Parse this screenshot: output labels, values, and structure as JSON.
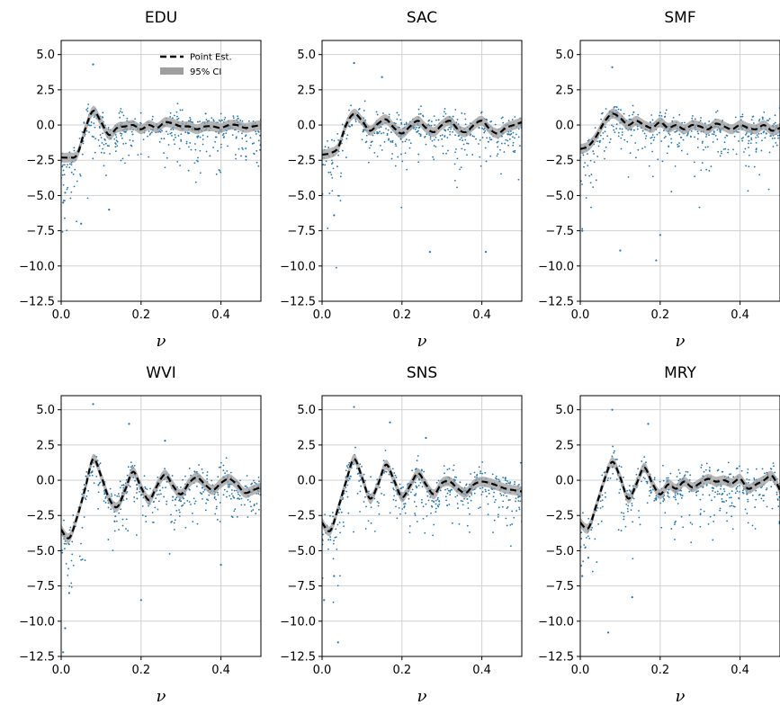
{
  "figure": {
    "legend": {
      "point_label": "Point Est.",
      "ci_label": "95% CI",
      "placement": "top-right of first panel"
    },
    "colors": {
      "point_estimate": "#000000",
      "ci_band": "#9e9e9e",
      "scatter": "#1f77b4",
      "grid": "#d0d0d0"
    }
  },
  "chart_data": [
    {
      "type": "line",
      "title": "EDU",
      "xlabel": "ν",
      "ylabel": "",
      "xlim": [
        0,
        0.5
      ],
      "ylim": [
        -12.5,
        6
      ],
      "xticks": [
        "0.0",
        "0.2",
        "0.4"
      ],
      "yticks": [
        "5.0",
        "2.5",
        "0.0",
        "−2.5",
        "−5.0",
        "−7.5",
        "−10.0",
        "−12.5"
      ],
      "grid": true,
      "legend": "top-right",
      "series": [
        {
          "name": "Point Est.",
          "x": [
            0.0,
            0.02,
            0.04,
            0.06,
            0.08,
            0.1,
            0.12,
            0.14,
            0.16,
            0.18,
            0.2,
            0.22,
            0.24,
            0.26,
            0.28,
            0.3,
            0.32,
            0.34,
            0.36,
            0.38,
            0.4,
            0.42,
            0.44,
            0.46,
            0.48,
            0.5
          ],
          "y": [
            -2.3,
            -2.3,
            -2.1,
            -0.3,
            1.0,
            0.2,
            -0.7,
            -0.2,
            -0.1,
            0.0,
            -0.3,
            0.0,
            -0.2,
            0.2,
            0.1,
            -0.1,
            -0.1,
            -0.3,
            -0.1,
            -0.1,
            -0.2,
            0.0,
            0.0,
            -0.2,
            -0.1,
            0.0
          ]
        },
        {
          "name": "95% CI",
          "half_width": 0.35
        }
      ],
      "scatter_outliers": [
        [
          0.08,
          4.3
        ],
        [
          0.05,
          -7.0
        ],
        [
          0.12,
          -6.0
        ],
        [
          0.005,
          -5.5
        ],
        [
          0.01,
          -4.8
        ]
      ]
    },
    {
      "type": "line",
      "title": "SAC",
      "xlabel": "ν",
      "ylabel": "",
      "xlim": [
        0,
        0.5
      ],
      "ylim": [
        -12.5,
        6
      ],
      "xticks": [
        "0.0",
        "0.2",
        "0.4"
      ],
      "yticks": [
        "5.0",
        "2.5",
        "0.0",
        "−2.5",
        "−5.0",
        "−7.5",
        "−10.0",
        "−12.5"
      ],
      "grid": true,
      "series": [
        {
          "name": "Point Est.",
          "x": [
            0.0,
            0.02,
            0.04,
            0.06,
            0.08,
            0.1,
            0.12,
            0.14,
            0.16,
            0.18,
            0.2,
            0.22,
            0.24,
            0.26,
            0.28,
            0.3,
            0.32,
            0.34,
            0.36,
            0.38,
            0.4,
            0.42,
            0.44,
            0.46,
            0.48,
            0.5
          ],
          "y": [
            -2.1,
            -2.0,
            -1.6,
            0.0,
            0.8,
            0.3,
            -0.4,
            0.1,
            0.4,
            -0.2,
            -0.6,
            -0.1,
            0.3,
            -0.2,
            -0.5,
            0.0,
            0.3,
            -0.3,
            -0.5,
            0.0,
            0.3,
            -0.3,
            -0.6,
            -0.2,
            0.0,
            0.2
          ]
        },
        {
          "name": "95% CI",
          "half_width": 0.35
        }
      ],
      "scatter_outliers": [
        [
          0.08,
          4.4
        ],
        [
          0.15,
          3.4
        ],
        [
          0.27,
          -9.0
        ],
        [
          0.41,
          -9.0
        ],
        [
          0.03,
          -6.4
        ]
      ]
    },
    {
      "type": "line",
      "title": "SMF",
      "xlabel": "ν",
      "ylabel": "",
      "xlim": [
        0,
        0.5
      ],
      "ylim": [
        -12.5,
        6
      ],
      "xticks": [
        "0.0",
        "0.2",
        "0.4"
      ],
      "yticks": [
        "5.0",
        "2.5",
        "0.0",
        "−2.5",
        "−5.0",
        "−7.5",
        "−10.0",
        "−12.5"
      ],
      "grid": true,
      "series": [
        {
          "name": "Point Est.",
          "x": [
            0.0,
            0.02,
            0.04,
            0.06,
            0.08,
            0.1,
            0.12,
            0.14,
            0.16,
            0.18,
            0.2,
            0.22,
            0.24,
            0.26,
            0.28,
            0.3,
            0.32,
            0.34,
            0.36,
            0.38,
            0.4,
            0.42,
            0.44,
            0.46,
            0.48,
            0.5
          ],
          "y": [
            -1.7,
            -1.5,
            -0.8,
            0.2,
            0.8,
            0.5,
            0.0,
            0.3,
            0.0,
            -0.2,
            0.2,
            -0.2,
            0.0,
            -0.3,
            0.0,
            -0.1,
            -0.3,
            0.1,
            -0.1,
            -0.3,
            0.0,
            -0.2,
            -0.3,
            0.0,
            -0.4,
            -0.2
          ]
        },
        {
          "name": "95% CI",
          "half_width": 0.35
        }
      ],
      "scatter_outliers": [
        [
          0.08,
          4.1
        ],
        [
          0.19,
          -9.6
        ],
        [
          0.2,
          -7.8
        ],
        [
          0.1,
          -8.9
        ],
        [
          0.005,
          -7.5
        ]
      ]
    },
    {
      "type": "line",
      "title": "WVI",
      "xlabel": "ν",
      "ylabel": "",
      "xlim": [
        0,
        0.5
      ],
      "ylim": [
        -12.5,
        6
      ],
      "xticks": [
        "0.0",
        "0.2",
        "0.4"
      ],
      "yticks": [
        "5.0",
        "2.5",
        "0.0",
        "−2.5",
        "−5.0",
        "−7.5",
        "−10.0",
        "−12.5"
      ],
      "grid": true,
      "series": [
        {
          "name": "Point Est.",
          "x": [
            0.0,
            0.02,
            0.04,
            0.06,
            0.08,
            0.1,
            0.12,
            0.14,
            0.16,
            0.18,
            0.2,
            0.22,
            0.24,
            0.26,
            0.28,
            0.3,
            0.32,
            0.34,
            0.36,
            0.38,
            0.4,
            0.42,
            0.44,
            0.46,
            0.48,
            0.5
          ],
          "y": [
            -3.5,
            -4.1,
            -2.6,
            -0.6,
            1.5,
            0.3,
            -1.3,
            -1.9,
            -0.7,
            0.6,
            -0.5,
            -1.4,
            -0.4,
            0.4,
            -0.4,
            -1.0,
            -0.2,
            0.2,
            -0.3,
            -0.7,
            -0.2,
            0.1,
            -0.3,
            -0.9,
            -0.7,
            -0.5
          ]
        },
        {
          "name": "95% CI",
          "half_width": 0.35
        }
      ],
      "scatter_outliers": [
        [
          0.08,
          5.4
        ],
        [
          0.17,
          4.0
        ],
        [
          0.26,
          2.8
        ],
        [
          0.2,
          -8.5
        ],
        [
          0.4,
          -6.0
        ],
        [
          0.005,
          -12.2
        ],
        [
          0.01,
          -10.5
        ],
        [
          0.02,
          -8.0
        ]
      ]
    },
    {
      "type": "line",
      "title": "SNS",
      "xlabel": "ν",
      "ylabel": "",
      "xlim": [
        0,
        0.5
      ],
      "ylim": [
        -12.5,
        6
      ],
      "xticks": [
        "0.0",
        "0.2",
        "0.4"
      ],
      "yticks": [
        "5.0",
        "2.5",
        "0.0",
        "−2.5",
        "−5.0",
        "−7.5",
        "−10.0",
        "−12.5"
      ],
      "grid": true,
      "series": [
        {
          "name": "Point Est.",
          "x": [
            0.0,
            0.02,
            0.04,
            0.06,
            0.08,
            0.1,
            0.12,
            0.14,
            0.16,
            0.18,
            0.2,
            0.22,
            0.24,
            0.26,
            0.28,
            0.3,
            0.32,
            0.34,
            0.36,
            0.38,
            0.4,
            0.42,
            0.44,
            0.46,
            0.48,
            0.5
          ],
          "y": [
            -3.0,
            -3.6,
            -2.0,
            -0.1,
            1.5,
            0.2,
            -1.3,
            -0.3,
            1.1,
            0.0,
            -1.2,
            -0.4,
            0.5,
            -0.3,
            -1.0,
            -0.2,
            -0.1,
            -0.6,
            -0.9,
            -0.3,
            -0.1,
            -0.2,
            -0.4,
            -0.6,
            -0.7,
            -0.8
          ]
        },
        {
          "name": "95% CI",
          "half_width": 0.35
        }
      ],
      "scatter_outliers": [
        [
          0.08,
          5.2
        ],
        [
          0.17,
          4.1
        ],
        [
          0.26,
          3.0
        ],
        [
          0.04,
          -11.5
        ],
        [
          0.005,
          -8.5
        ],
        [
          0.03,
          -6.8
        ]
      ]
    },
    {
      "type": "line",
      "title": "MRY",
      "xlabel": "ν",
      "ylabel": "",
      "xlim": [
        0,
        0.5
      ],
      "ylim": [
        -12.5,
        6
      ],
      "xticks": [
        "0.0",
        "0.2",
        "0.4"
      ],
      "yticks": [
        "5.0",
        "2.5",
        "0.0",
        "−2.5",
        "−5.0",
        "−7.5",
        "−10.0",
        "−12.5"
      ],
      "grid": true,
      "series": [
        {
          "name": "Point Est.",
          "x": [
            0.0,
            0.02,
            0.04,
            0.06,
            0.08,
            0.1,
            0.12,
            0.14,
            0.16,
            0.18,
            0.2,
            0.22,
            0.24,
            0.26,
            0.28,
            0.3,
            0.32,
            0.34,
            0.36,
            0.38,
            0.4,
            0.42,
            0.44,
            0.46,
            0.48,
            0.5
          ],
          "y": [
            -3.0,
            -3.4,
            -1.8,
            0.0,
            1.3,
            0.2,
            -1.3,
            -0.3,
            0.9,
            -0.2,
            -1.0,
            -0.3,
            -0.6,
            -0.1,
            -0.5,
            -0.2,
            0.1,
            -0.1,
            0.0,
            -0.2,
            0.1,
            -0.6,
            -0.3,
            0.0,
            0.3,
            -0.7
          ]
        },
        {
          "name": "95% CI",
          "half_width": 0.35
        }
      ],
      "scatter_outliers": [
        [
          0.08,
          5.0
        ],
        [
          0.17,
          4.0
        ],
        [
          0.07,
          -10.8
        ],
        [
          0.13,
          -8.3
        ],
        [
          0.005,
          -6.8
        ],
        [
          0.02,
          -5.5
        ]
      ]
    }
  ]
}
